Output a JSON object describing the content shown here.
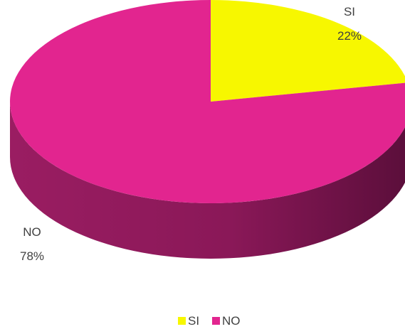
{
  "chart_data": {
    "type": "pie",
    "categories": [
      "SI",
      "NO"
    ],
    "values": [
      22,
      78
    ],
    "labels": [
      "22%",
      "78%"
    ],
    "colors": [
      "#f7f700",
      "#e2258f"
    ],
    "side_colors": [
      "#b3b300",
      "#8e1a5a"
    ],
    "legend_position": "bottom"
  }
}
